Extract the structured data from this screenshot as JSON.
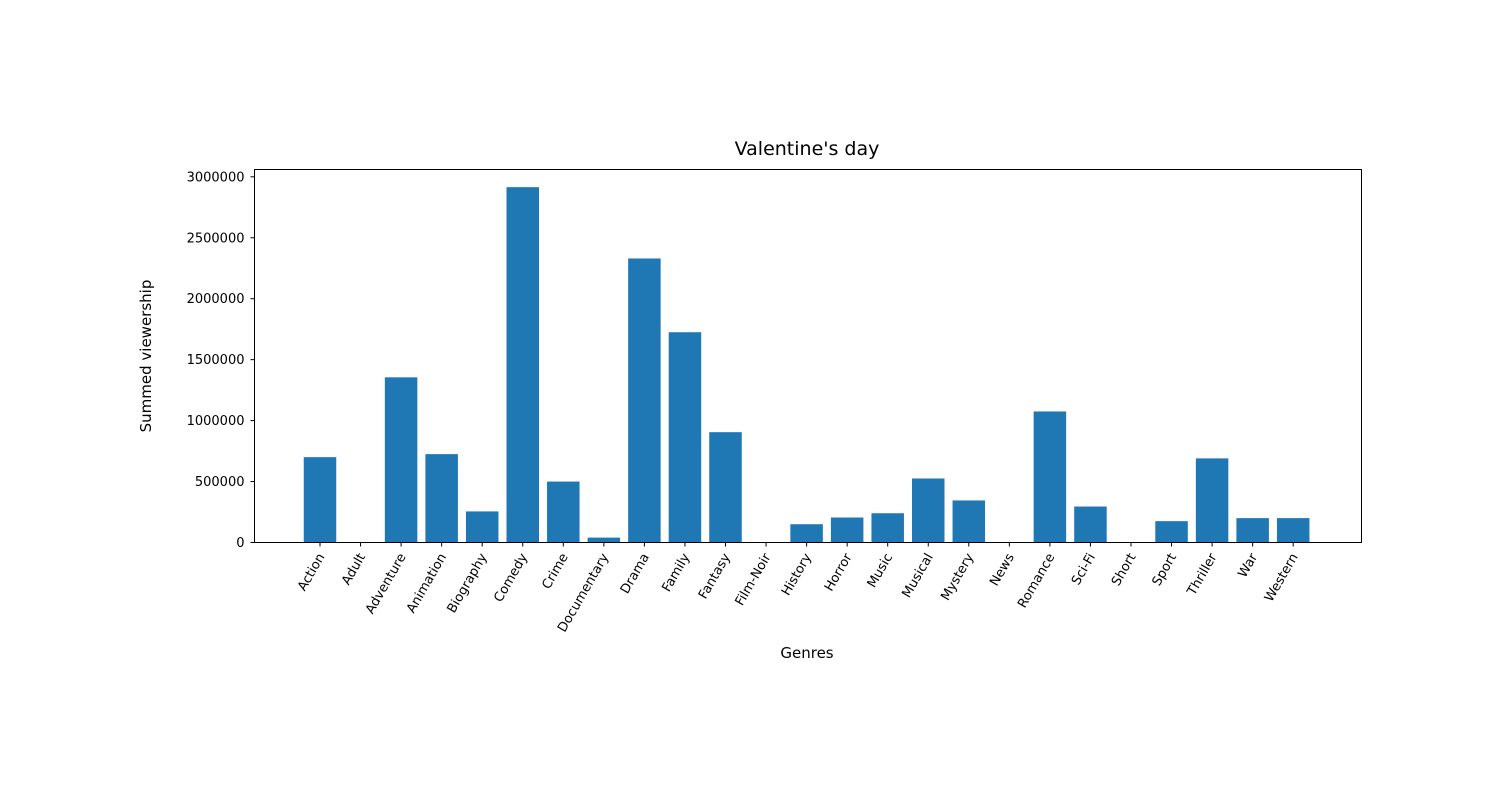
{
  "chart_data": {
    "type": "bar",
    "title": "Valentine's day",
    "xlabel": "Genres",
    "ylabel": "Summed viewership",
    "categories": [
      "Action",
      "Adult",
      "Adventure",
      "Animation",
      "Biography",
      "Comedy",
      "Crime",
      "Documentary",
      "Drama",
      "Family",
      "Fantasy",
      "Film-Noir",
      "History",
      "Horror",
      "Music",
      "Musical",
      "Mystery",
      "News",
      "Romance",
      "Sci-Fi",
      "Short",
      "Sport",
      "Thriller",
      "War",
      "Western"
    ],
    "values": [
      700000,
      0,
      1355000,
      725000,
      255000,
      2915000,
      500000,
      40000,
      2330000,
      1725000,
      905000,
      0,
      150000,
      205000,
      240000,
      525000,
      345000,
      0,
      1075000,
      295000,
      0,
      175000,
      690000,
      200000,
      200000
    ],
    "ylim": [
      0,
      3060000
    ],
    "yticks": [
      0,
      500000,
      1000000,
      1500000,
      2000000,
      2500000,
      3000000
    ],
    "grid": false,
    "bar_color": "#1f77b4"
  }
}
